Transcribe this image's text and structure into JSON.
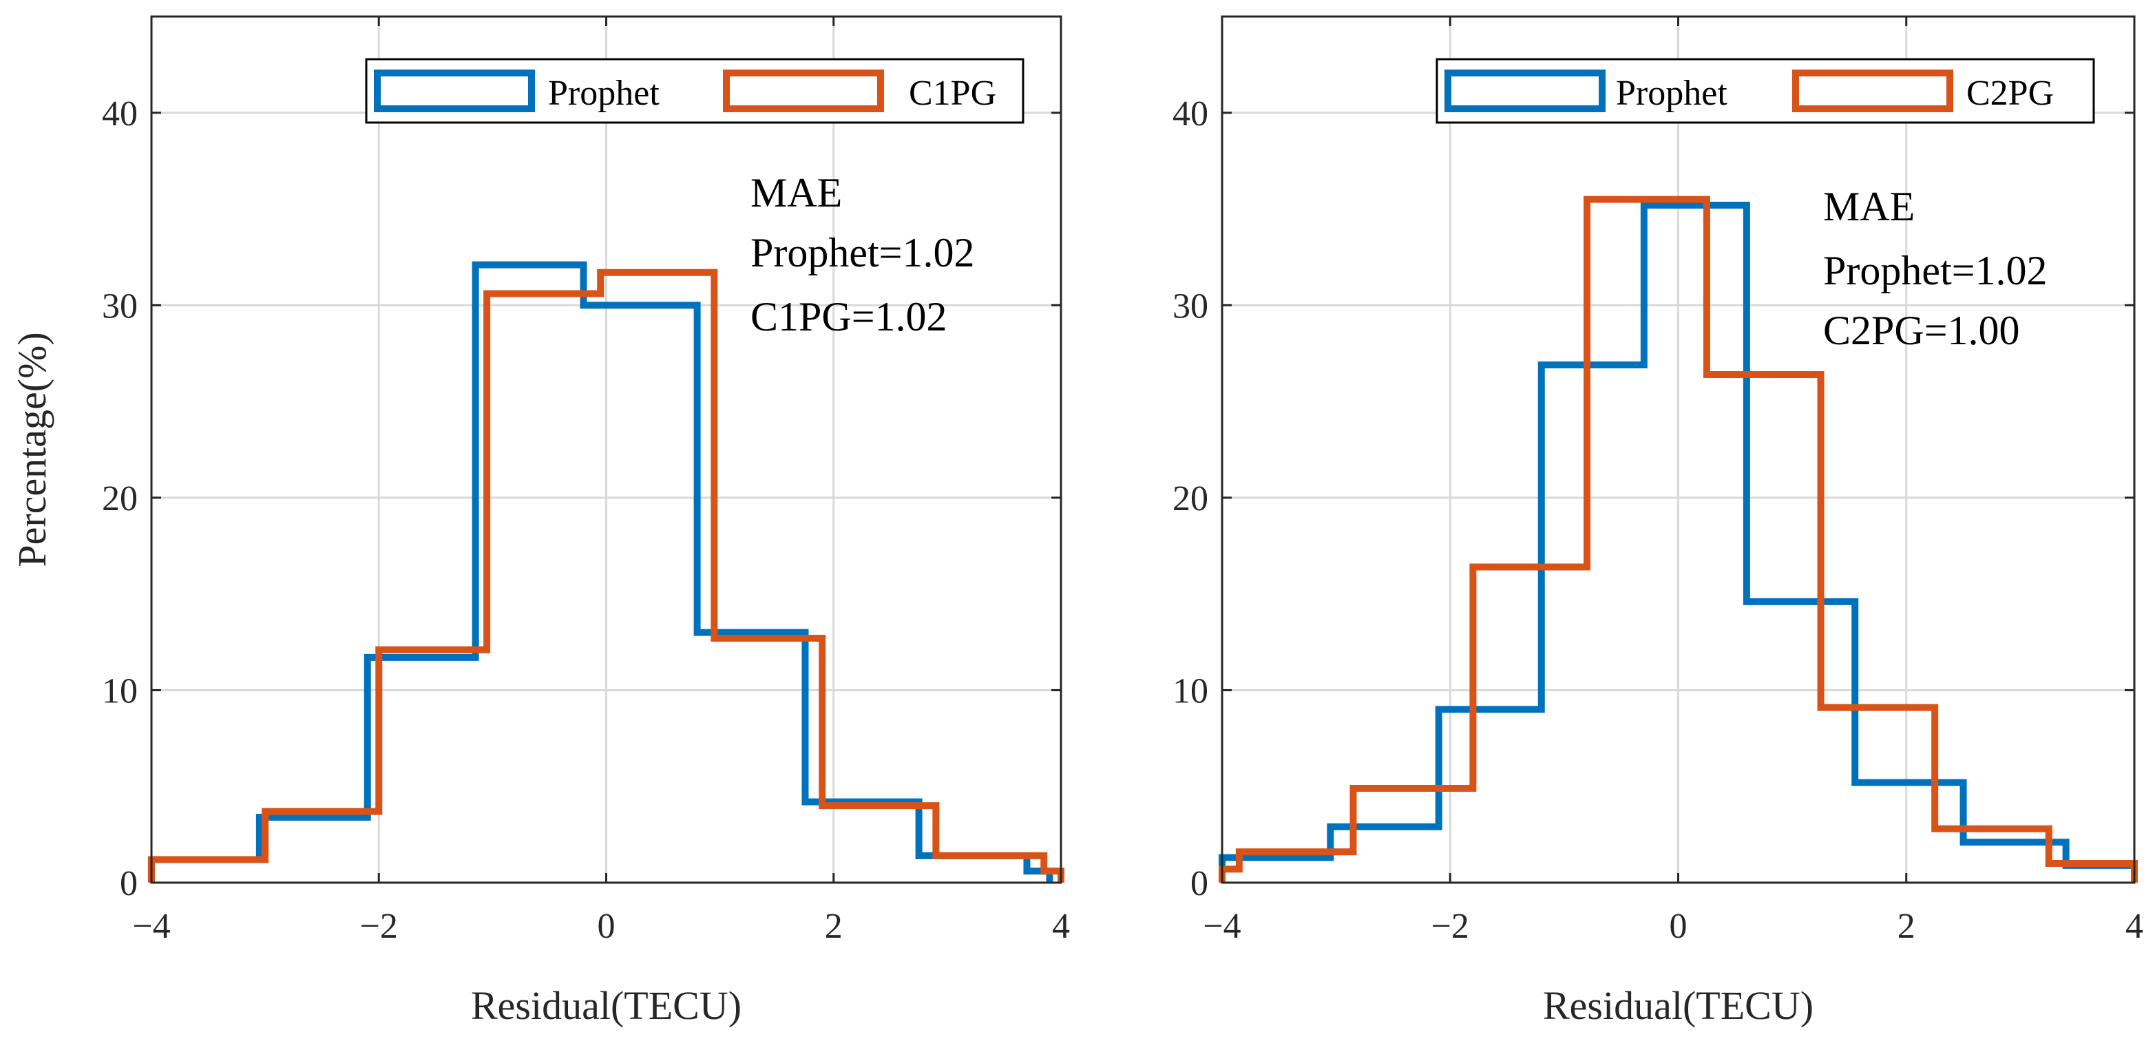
{
  "chart_data": [
    {
      "type": "histogram",
      "xlabel": "Residual(TECU)",
      "ylabel": "Percentage(%)",
      "xlim": [
        -4,
        4
      ],
      "ylim": [
        0,
        45
      ],
      "xticks": [
        -4,
        -2,
        0,
        2,
        4
      ],
      "yticks": [
        0,
        10,
        20,
        30,
        40
      ],
      "xtick_labels": [
        "−4",
        "−2",
        "0",
        "2",
        "4"
      ],
      "ytick_labels": [
        "0",
        "10",
        "20",
        "30",
        "40"
      ],
      "grid": true,
      "legend_position": "top-right",
      "annotation": [
        "MAE",
        "Prophet=1.02",
        "C1PG=1.02"
      ],
      "series": [
        {
          "name": "Prophet",
          "color": "#0072BD",
          "edges": [
            -4.0,
            -3.05,
            -2.1,
            -1.15,
            -0.2,
            0.8,
            1.75,
            2.75,
            3.7,
            3.9
          ],
          "values": [
            1.2,
            3.4,
            11.7,
            32.1,
            30.0,
            13.0,
            4.2,
            1.4,
            0.6
          ]
        },
        {
          "name": "C1PG",
          "color": "#D95319",
          "edges": [
            -4.0,
            -3.0,
            -2.0,
            -1.05,
            -0.05,
            0.95,
            1.9,
            2.9,
            3.85,
            4.0
          ],
          "values": [
            1.2,
            3.7,
            12.1,
            30.6,
            31.7,
            12.7,
            4.0,
            1.4,
            0.6
          ]
        }
      ]
    },
    {
      "type": "histogram",
      "xlabel": "Residual(TECU)",
      "ylabel": "",
      "xlim": [
        -4,
        4
      ],
      "ylim": [
        0,
        45
      ],
      "xticks": [
        -4,
        -2,
        0,
        2,
        4
      ],
      "yticks": [
        0,
        10,
        20,
        30,
        40
      ],
      "xtick_labels": [
        "−4",
        "−2",
        "0",
        "2",
        "4"
      ],
      "ytick_labels": [
        "0",
        "10",
        "20",
        "30",
        "40"
      ],
      "grid": true,
      "legend_position": "top-right",
      "annotation": [
        "MAE",
        "Prophet=1.02",
        "C2PG=1.00"
      ],
      "series": [
        {
          "name": "Prophet",
          "color": "#0072BD",
          "edges": [
            -4.0,
            -3.05,
            -2.1,
            -1.2,
            -0.3,
            0.6,
            1.55,
            2.5,
            3.4,
            4.0
          ],
          "values": [
            1.3,
            2.9,
            9.0,
            26.9,
            35.2,
            14.6,
            5.2,
            2.1,
            0.9
          ]
        },
        {
          "name": "C2PG",
          "color": "#D95319",
          "edges": [
            -4.0,
            -3.85,
            -2.85,
            -1.8,
            -0.8,
            0.25,
            1.25,
            2.25,
            3.25,
            4.0
          ],
          "values": [
            0.7,
            1.6,
            4.9,
            16.4,
            35.5,
            26.4,
            9.1,
            2.8,
            1.0
          ]
        }
      ]
    }
  ]
}
